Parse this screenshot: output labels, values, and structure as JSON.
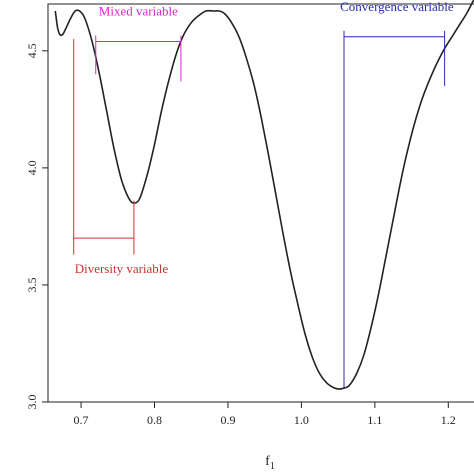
{
  "chart_data": {
    "type": "line",
    "xlabel": "f",
    "xlabel_sub": "1",
    "ylabel": "",
    "xlim": [
      0.655,
      1.235
    ],
    "ylim": [
      3.0,
      4.7
    ],
    "x_ticks": [
      0.7,
      0.8,
      0.9,
      1.0,
      1.1,
      1.2
    ],
    "x_tick_labels": [
      "0.7",
      "0.8",
      "0.9",
      "1.0",
      "1.1",
      "1.2"
    ],
    "y_ticks": [
      3.0,
      3.5,
      4.0,
      4.5
    ],
    "y_tick_labels": [
      "3.0",
      "3.5",
      "4.0",
      "4.5"
    ],
    "grid": false,
    "line_color": "#222222",
    "series": [
      {
        "x": [
          0.665,
          0.668,
          0.671,
          0.675,
          0.68,
          0.686,
          0.692,
          0.698,
          0.705,
          0.715,
          0.725,
          0.735,
          0.745,
          0.755,
          0.765,
          0.772,
          0.78,
          0.79,
          0.8,
          0.81,
          0.82,
          0.83,
          0.84,
          0.85,
          0.86,
          0.87,
          0.88,
          0.888,
          0.895,
          0.905,
          0.915,
          0.925,
          0.935,
          0.945,
          0.955,
          0.965,
          0.975,
          0.985,
          0.995,
          1.005,
          1.015,
          1.025,
          1.035,
          1.045,
          1.052,
          1.058,
          1.065,
          1.075,
          1.085,
          1.095,
          1.105,
          1.115,
          1.125,
          1.135,
          1.145,
          1.155,
          1.165,
          1.175,
          1.185,
          1.195,
          1.205,
          1.215,
          1.225,
          1.235
        ],
        "y": [
          4.67,
          4.6,
          4.57,
          4.57,
          4.6,
          4.64,
          4.67,
          4.67,
          4.64,
          4.54,
          4.4,
          4.24,
          4.08,
          3.95,
          3.87,
          3.85,
          3.87,
          3.97,
          4.1,
          4.25,
          4.38,
          4.49,
          4.57,
          4.62,
          4.65,
          4.67,
          4.67,
          4.67,
          4.66,
          4.62,
          4.56,
          4.47,
          4.36,
          4.22,
          4.06,
          3.89,
          3.72,
          3.56,
          3.42,
          3.29,
          3.19,
          3.12,
          3.08,
          3.06,
          3.055,
          3.06,
          3.07,
          3.12,
          3.2,
          3.32,
          3.46,
          3.62,
          3.78,
          3.94,
          4.08,
          4.2,
          4.3,
          4.38,
          4.45,
          4.51,
          4.56,
          4.61,
          4.66,
          4.72
        ]
      }
    ],
    "annotations": [
      {
        "label": "Mixed variable",
        "color": "#e020d0",
        "x_start": 0.72,
        "x_end": 0.836,
        "y_bracket": 4.54,
        "y_end_left": 4.4,
        "y_end_right": 4.37,
        "label_x": 0.778,
        "label_y": 4.65
      },
      {
        "label": "Convergence variable",
        "color": "#2a2ab0",
        "x_start": 1.058,
        "x_end": 1.195,
        "y_bracket": 4.56,
        "y_end_left": 3.055,
        "y_end_right": 4.35,
        "label_x": 1.13,
        "label_y": 4.67
      },
      {
        "label": "Diversity variable",
        "color": "#d03030",
        "x_start": 0.69,
        "x_end": 0.772,
        "y_bracket": 3.7,
        "y_start_left": 4.55,
        "y_start_right": 3.86,
        "y_end": 3.63,
        "label_x": 0.755,
        "label_y": 3.55
      }
    ]
  }
}
